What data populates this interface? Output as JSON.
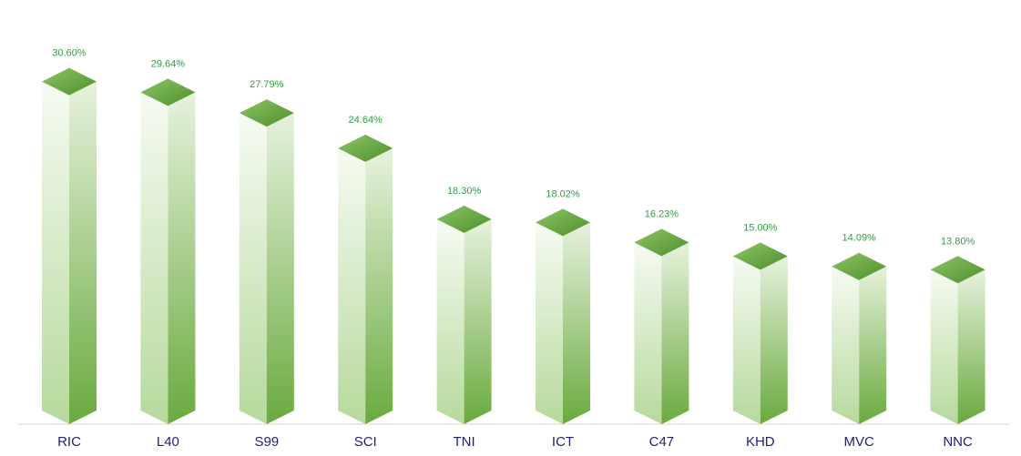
{
  "chart_data": {
    "type": "bar3d",
    "categories": [
      "RIC",
      "L40",
      "S99",
      "SCI",
      "TNI",
      "ICT",
      "C47",
      "KHD",
      "MVC",
      "NNC"
    ],
    "values": [
      30.6,
      29.64,
      27.79,
      24.64,
      18.3,
      18.02,
      16.23,
      15.0,
      14.09,
      13.8
    ],
    "value_labels": [
      "30.60%",
      "29.64%",
      "27.79%",
      "24.64%",
      "18.30%",
      "18.02%",
      "16.23%",
      "15.00%",
      "14.09%",
      "13.80%"
    ],
    "color": "#6aaa3e"
  }
}
